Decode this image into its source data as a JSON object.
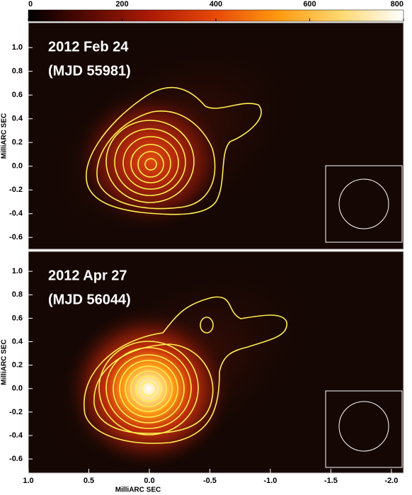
{
  "chart_data": [
    {
      "type": "colorbar",
      "xlim": [
        0,
        800
      ],
      "xticks": [
        0,
        200,
        400,
        600,
        800
      ],
      "colors": [
        "#000000",
        "#5a0a02",
        "#b01c04",
        "#e84a08",
        "#ff9a10",
        "#ffd870",
        "#ffffff"
      ]
    },
    {
      "type": "image",
      "title": "2012 Feb 24",
      "subtitle": "(MJD 55981)",
      "ylabel": "MilliARC SEC",
      "xlim": [
        1.0,
        -2.1
      ],
      "ylim": [
        -0.7,
        1.21
      ],
      "yticks": [
        {
          "value": 1,
          "label": "1.0"
        },
        0.8,
        0.6,
        0.4,
        0.2,
        {
          "value": 0,
          "label": "0.0"
        },
        -0.2,
        -0.4,
        -0.6
      ]
    },
    {
      "type": "image",
      "title": "2012 Apr 27",
      "subtitle": "(MJD 56044)",
      "ylabel": "MilliARC SEC",
      "xlabel": "MilliARC SEC",
      "xlim": [
        1.0,
        -2.1
      ],
      "ylim": [
        -0.72,
        1.17
      ],
      "xticks": [
        {
          "value": 1,
          "label": "1.0"
        },
        0.5,
        {
          "value": 0,
          "label": "0.0"
        },
        -0.5,
        {
          "value": -1,
          "label": "-1.0"
        },
        -1.5,
        {
          "value": -2,
          "label": "-2.0"
        }
      ],
      "yticks": [
        {
          "value": 1,
          "label": "1.0"
        },
        0.8,
        0.6,
        0.4,
        0.2,
        {
          "value": 0,
          "label": "0.0"
        },
        -0.2,
        -0.4,
        -0.6
      ]
    }
  ]
}
